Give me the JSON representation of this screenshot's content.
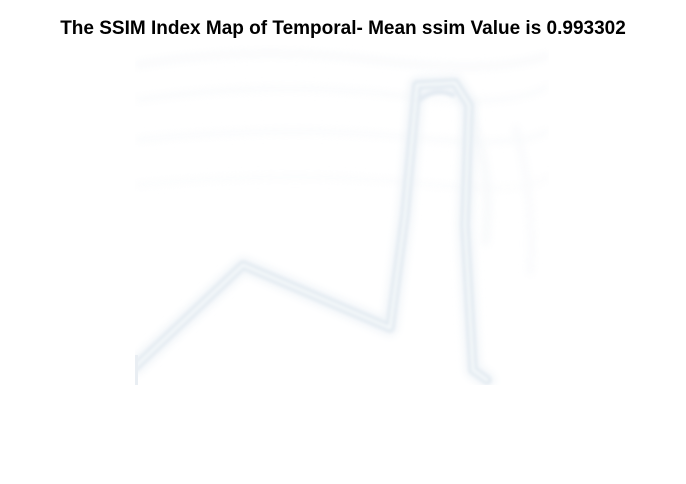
{
  "figure": {
    "title": "The SSIM Index Map of Temporal- Mean ssim Value is 0.993302"
  },
  "image": {
    "description_icon": "ssim-map-image",
    "colors": {
      "background": "#ffffff",
      "edge_light": "#eef3f8",
      "edge_mid": "#dde6ef",
      "texture": "#f4f6f8"
    }
  }
}
